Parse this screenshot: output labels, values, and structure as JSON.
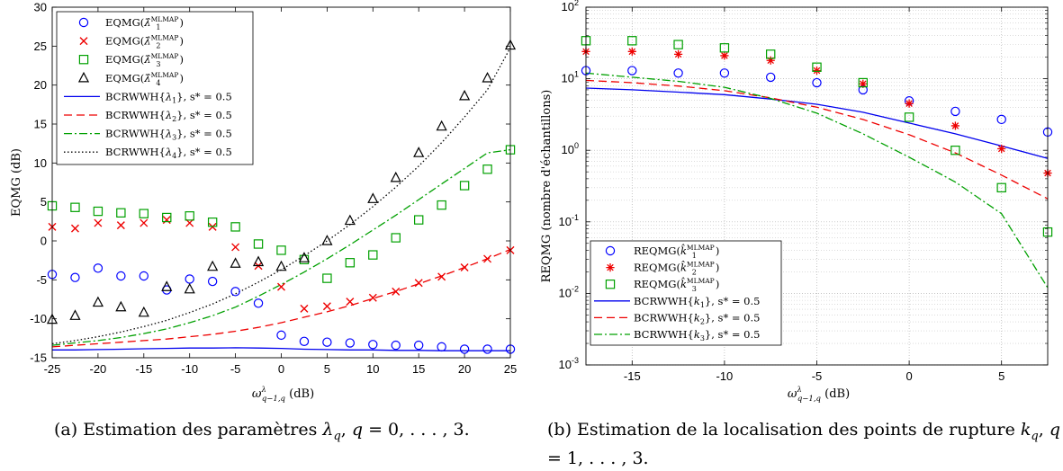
{
  "chart_data": [
    {
      "type": "scatter",
      "panel": "a",
      "caption": "(a) Estimation des paramètres λq, q = 0, . . . , 3.",
      "xlabel": "ω^λ_{q−1,q} (dB)",
      "ylabel": "EQMG (dB)",
      "xlim": [
        -25,
        25
      ],
      "ylim": [
        -15,
        30
      ],
      "xticks": [
        -25,
        -20,
        -15,
        -10,
        -5,
        0,
        5,
        10,
        15,
        20,
        25
      ],
      "yticks": [
        -15,
        -10,
        -5,
        0,
        5,
        10,
        15,
        20,
        25,
        30
      ],
      "yscale": "linear",
      "grid": false,
      "legend_position": "top-left",
      "x": [
        -25,
        -22.5,
        -20,
        -17.5,
        -15,
        -12.5,
        -10,
        -7.5,
        -5,
        -2.5,
        0,
        2.5,
        5,
        7.5,
        10,
        12.5,
        15,
        17.5,
        20,
        22.5,
        25
      ],
      "series": [
        {
          "name": "EQMG(λ̂1^MLMAP)",
          "label_main": "EQMG(",
          "label_sym": "λ̂",
          "label_sub": "1",
          "label_sup": "MLMAP",
          "label_tail": ")",
          "kind": "marker",
          "marker": "circle",
          "color": "#0000ff",
          "values": [
            -4.3,
            -4.7,
            -3.5,
            -4.5,
            -4.5,
            -6.3,
            -4.9,
            -5.2,
            -6.5,
            -8.0,
            -12.1,
            -12.9,
            -13.0,
            -13.1,
            -13.3,
            -13.4,
            -13.4,
            -13.6,
            -13.9,
            -13.9,
            -13.9
          ]
        },
        {
          "name": "EQMG(λ̂2^MLMAP)",
          "label_main": "EQMG(",
          "label_sym": "λ̂",
          "label_sub": "2",
          "label_sup": "MLMAP",
          "label_tail": ")",
          "kind": "marker",
          "marker": "cross",
          "color": "#ee0000",
          "values": [
            1.8,
            1.6,
            2.3,
            2.0,
            2.3,
            2.7,
            2.3,
            1.8,
            -0.8,
            -3.2,
            -5.9,
            -8.7,
            -8.4,
            -7.8,
            -7.3,
            -6.5,
            -5.4,
            -4.6,
            -3.4,
            -2.3,
            -1.2
          ]
        },
        {
          "name": "EQMG(λ̂3^MLMAP)",
          "label_main": "EQMG(",
          "label_sym": "λ̂",
          "label_sub": "3",
          "label_sup": "MLMAP",
          "label_tail": ")",
          "kind": "marker",
          "marker": "square",
          "color": "#00a000",
          "values": [
            4.5,
            4.3,
            3.8,
            3.6,
            3.5,
            3.0,
            3.2,
            2.4,
            1.8,
            -0.4,
            -1.2,
            -2.4,
            -4.8,
            -2.8,
            -1.8,
            0.4,
            2.7,
            4.6,
            7.1,
            9.2,
            11.7
          ]
        },
        {
          "name": "EQMG(λ̂4^MLMAP)",
          "label_main": "EQMG(",
          "label_sym": "λ̂",
          "label_sub": "4",
          "label_sup": "MLMAP",
          "label_tail": ")",
          "kind": "marker",
          "marker": "triangle",
          "color": "#000000",
          "values": [
            -10.1,
            -9.6,
            -7.9,
            -8.5,
            -9.2,
            -5.9,
            -6.2,
            -3.3,
            -2.9,
            -2.7,
            -3.3,
            -2.2,
            0.0,
            2.6,
            5.4,
            8.1,
            11.3,
            14.7,
            18.6,
            20.9,
            25.1
          ]
        },
        {
          "name": "BCRWWH{λ1}, s* = 0.5",
          "label_main": "BCRWWH{",
          "label_sym": "λ",
          "label_sub": "1",
          "label_tail": "}, s* = 0.5",
          "kind": "line",
          "dash": "",
          "color": "#0000ee",
          "values": [
            -14.0,
            -14.0,
            -13.95,
            -13.9,
            -13.85,
            -13.8,
            -13.75,
            -13.75,
            -13.72,
            -13.75,
            -13.8,
            -13.9,
            -13.95,
            -14.0,
            -14.0,
            -14.05,
            -14.05,
            -14.1,
            -14.1,
            -14.1,
            -14.1
          ]
        },
        {
          "name": "BCRWWH{λ2}, s* = 0.5",
          "label_main": "BCRWWH{",
          "label_sym": "λ",
          "label_sub": "2",
          "label_tail": "}, s* = 0.5",
          "kind": "line",
          "dash": "9,5",
          "color": "#ee0000",
          "values": [
            -13.6,
            -13.4,
            -13.2,
            -13.0,
            -12.8,
            -12.6,
            -12.3,
            -12.0,
            -11.6,
            -11.1,
            -10.5,
            -9.8,
            -9.1,
            -8.3,
            -7.4,
            -6.5,
            -5.5,
            -4.5,
            -3.4,
            -2.3,
            -1.1
          ]
        },
        {
          "name": "BCRWWH{λ3}, s* = 0.5",
          "label_main": "BCRWWH{",
          "label_sym": "λ",
          "label_sub": "3",
          "label_tail": "}, s* = 0.5",
          "kind": "line",
          "dash": "9,3,2,3",
          "color": "#00a000",
          "values": [
            -13.4,
            -13.1,
            -12.8,
            -12.4,
            -11.9,
            -11.3,
            -10.5,
            -9.6,
            -8.5,
            -7.1,
            -5.6,
            -4.0,
            -2.3,
            -0.5,
            1.4,
            3.3,
            5.3,
            7.3,
            9.3,
            11.3,
            11.7
          ]
        },
        {
          "name": "BCRWWH{λ4}, s* = 0.5",
          "label_main": "BCRWWH{",
          "label_sym": "λ",
          "label_sub": "4",
          "label_tail": "}, s* = 0.5",
          "kind": "line",
          "dash": "1.5,2.5",
          "color": "#000000",
          "values": [
            -13.2,
            -12.8,
            -12.3,
            -11.7,
            -11.0,
            -10.2,
            -9.2,
            -8.1,
            -6.8,
            -5.3,
            -3.7,
            -1.9,
            0.0,
            2.1,
            4.4,
            6.9,
            9.6,
            12.6,
            15.9,
            19.4,
            24.8
          ]
        }
      ]
    },
    {
      "type": "scatter",
      "panel": "b",
      "caption": "(b) Estimation de la localisation des points de rupture kq, q = 1, . . . , 3.",
      "xlabel": "ω^λ_{q−1,q} (dB)",
      "ylabel": "REQMG (nombre d'échantillons)",
      "xlim": [
        -17.5,
        7.5
      ],
      "ylim": [
        0.001,
        100
      ],
      "xticks": [
        -15,
        -10,
        -5,
        0,
        5
      ],
      "yticks": [
        "10^-3",
        "10^-2",
        "10^-1",
        "10^0",
        "10^1",
        "10^2"
      ],
      "yscale": "log",
      "grid": true,
      "legend_position": "bottom-left",
      "x": [
        -17.5,
        -15,
        -12.5,
        -10,
        -7.5,
        -5,
        -2.5,
        0,
        2.5,
        5,
        7.5
      ],
      "series": [
        {
          "name": "REQMG(k̂1^MLMAP)",
          "label_main": "REQMG(",
          "label_sym": "k̂",
          "label_sub": "1",
          "label_sup": "MLMAP",
          "label_tail": ")",
          "kind": "marker",
          "marker": "circle",
          "color": "#0000ff",
          "values": [
            13.0,
            13.0,
            12.0,
            12.0,
            10.5,
            8.8,
            7.0,
            4.9,
            3.5,
            2.7,
            1.8
          ]
        },
        {
          "name": "REQMG(k̂2^MLMAP)",
          "label_main": "REQMG(",
          "label_sym": "k̂",
          "label_sub": "2",
          "label_sup": "MLMAP",
          "label_tail": ")",
          "kind": "marker",
          "marker": "asterisk",
          "color": "#ee0000",
          "values": [
            24.0,
            24.0,
            22.0,
            21.0,
            18.0,
            13.0,
            8.5,
            4.5,
            2.2,
            1.05,
            0.48
          ]
        },
        {
          "name": "REQMG(k̂3^MLMAP)",
          "label_main": "REQMG(",
          "label_sym": "k̂",
          "label_sub": "3",
          "label_sup": "MLMAP",
          "label_tail": ")",
          "kind": "marker",
          "marker": "square",
          "color": "#00a000",
          "values": [
            34.0,
            34.0,
            30.0,
            27.0,
            22.0,
            14.5,
            8.8,
            2.9,
            1.0,
            0.3,
            0.072
          ]
        },
        {
          "name": "BCRWWH{k1}, s* = 0.5",
          "label_main": "BCRWWH{",
          "label_sym": "k",
          "label_sub": "1",
          "label_tail": "}, s* = 0.5",
          "kind": "line",
          "dash": "",
          "color": "#0000ee",
          "values": [
            7.4,
            7.0,
            6.5,
            6.0,
            5.2,
            4.4,
            3.4,
            2.4,
            1.7,
            1.15,
            0.77
          ]
        },
        {
          "name": "BCRWWH{k2}, s* = 0.5",
          "label_main": "BCRWWH{",
          "label_sym": "k",
          "label_sub": "2",
          "label_tail": "}, s* = 0.5",
          "kind": "line",
          "dash": "9,5",
          "color": "#ee0000",
          "values": [
            9.5,
            8.8,
            7.9,
            6.8,
            5.4,
            4.0,
            2.7,
            1.65,
            0.92,
            0.45,
            0.21
          ]
        },
        {
          "name": "BCRWWH{k3}, s* = 0.5",
          "label_main": "BCRWWH{",
          "label_sym": "k",
          "label_sub": "3",
          "label_tail": "}, s* = 0.5",
          "kind": "line",
          "dash": "9,3,2,3",
          "color": "#00a000",
          "values": [
            12.0,
            10.5,
            9.2,
            7.6,
            5.3,
            3.3,
            1.7,
            0.8,
            0.36,
            0.13,
            0.012
          ]
        }
      ]
    }
  ]
}
